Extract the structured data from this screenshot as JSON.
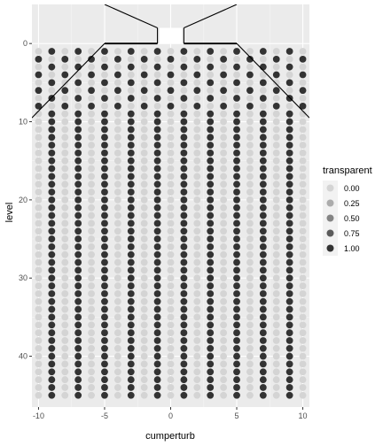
{
  "chart_data": {
    "type": "scatter",
    "title": "",
    "xlabel": "cumperturb",
    "ylabel": "level",
    "xlim": [
      -10.5,
      10.5
    ],
    "ylim": [
      46.5,
      -5
    ],
    "y_reversed": true,
    "x_ticks": [
      -10,
      -5,
      0,
      5,
      10
    ],
    "x_tick_labels": [
      "-10",
      "-5",
      "0",
      "5",
      "10"
    ],
    "y_ticks": [
      0,
      10,
      20,
      30,
      40
    ],
    "y_tick_labels": [
      "0",
      "10",
      "20",
      "30",
      "40"
    ],
    "grid": true,
    "legend": {
      "title": "transparent",
      "placement": "right",
      "entries": [
        {
          "label": "0.00",
          "value": 0.0
        },
        {
          "label": "0.25",
          "value": 0.25
        },
        {
          "label": "0.50",
          "value": 0.5
        },
        {
          "label": "0.75",
          "value": 0.75
        },
        {
          "label": "1.00",
          "value": 1.0
        }
      ]
    },
    "points": {
      "x_values": [
        -10,
        -9,
        -8,
        -7,
        -6,
        -5,
        -4,
        -3,
        -2,
        -1,
        0,
        1,
        2,
        3,
        4,
        5,
        6,
        7,
        8,
        9,
        10
      ],
      "top_block": {
        "levels": [
          1,
          2,
          3,
          4,
          5,
          6,
          7,
          8,
          9
        ],
        "description_rule": "opaque when (x + level) is even, transparent otherwise"
      },
      "column_block": {
        "levels_from": 10,
        "levels_to": 45,
        "opaque_x": [
          -9,
          -7,
          -5,
          -3,
          -1,
          1,
          3,
          5,
          7,
          9
        ],
        "transparent_x": [
          -10,
          -8,
          -6,
          -4,
          -2,
          0,
          2,
          4,
          6,
          8,
          10
        ]
      }
    },
    "overlay_lines": [
      {
        "x": [
          -10.5,
          -5
        ],
        "y": [
          9.5,
          0
        ]
      },
      {
        "x": [
          10.5,
          5
        ],
        "y": [
          9.5,
          0
        ]
      },
      {
        "x": [
          -5,
          -1
        ],
        "y": [
          0,
          0
        ]
      },
      {
        "x": [
          1,
          5
        ],
        "y": [
          0,
          0
        ]
      },
      {
        "x": [
          -1,
          -1
        ],
        "y": [
          0,
          -2
        ]
      },
      {
        "x": [
          1,
          1
        ],
        "y": [
          0,
          -2
        ]
      },
      {
        "x": [
          -1,
          -5
        ],
        "y": [
          -2,
          -5
        ]
      },
      {
        "x": [
          1,
          5
        ],
        "y": [
          -2,
          -5
        ]
      }
    ],
    "colors": {
      "panel": "#ebebeb",
      "grid_major": "#ffffff",
      "opaque_point": "#333333",
      "transparent_point": "#d4d4d4",
      "line": "#000000"
    }
  }
}
